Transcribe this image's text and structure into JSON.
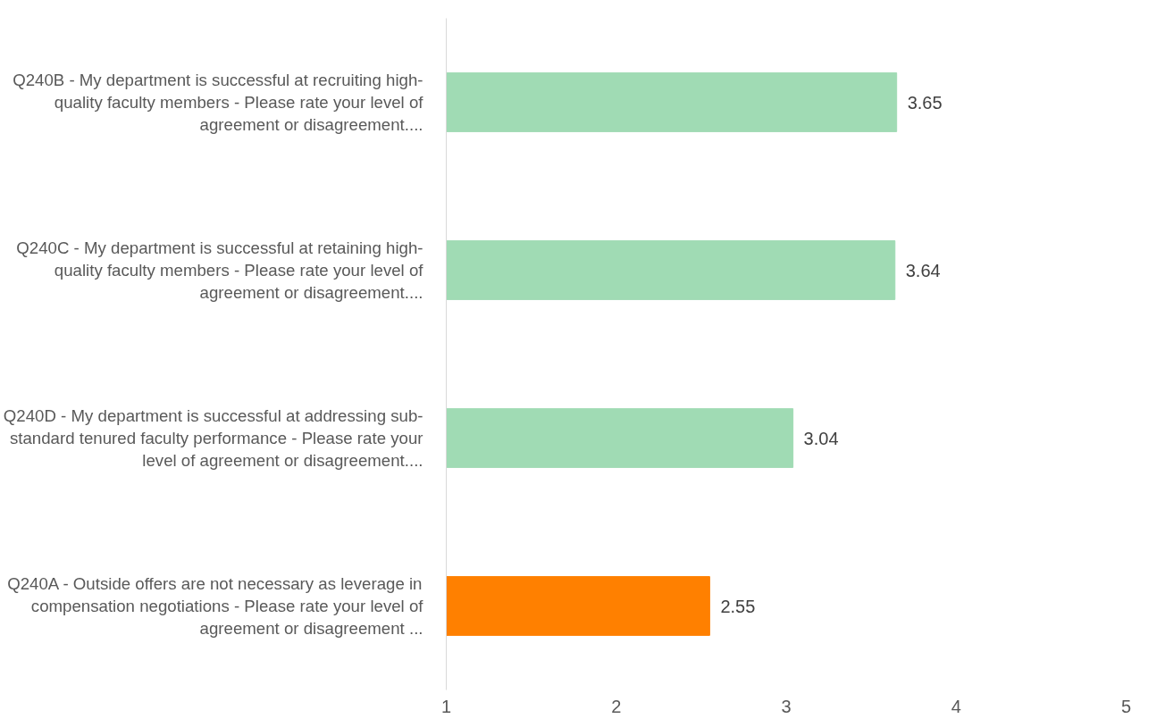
{
  "chart_data": {
    "type": "bar",
    "orientation": "horizontal",
    "categories": [
      "Q240B - My department is successful at recruiting high-quality faculty members - Please rate your level of agreement or disagreement....",
      "Q240C - My department is successful at retaining high-quality faculty members - Please rate your level of agreement or disagreement....",
      "Q240D - My department is successful at addressing sub-standard tenured faculty performance - Please rate your level of agreement or disagreement....",
      "Q240A - Outside offers are not necessary as leverage in compensation negotiations - Please rate your level of agreement or disagreement ..."
    ],
    "values": [
      3.65,
      3.64,
      3.04,
      2.55
    ],
    "colors": [
      "#a0dbb4",
      "#a0dbb4",
      "#a0dbb4",
      "#ff8000"
    ],
    "xlim": [
      1,
      5
    ],
    "xticks": [
      1,
      2,
      3,
      4,
      5
    ],
    "grid": false,
    "data_labels": true
  }
}
